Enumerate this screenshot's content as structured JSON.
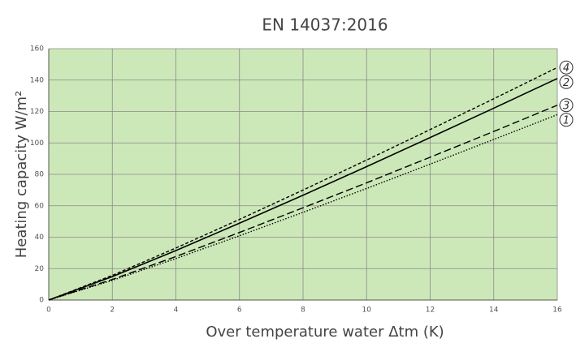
{
  "chart_data": {
    "type": "line",
    "title": "EN 14037:2016",
    "xlabel": "Over temperature water Δtm (K)",
    "ylabel": "Heating capacity W/m²",
    "x": [
      0,
      2,
      4,
      6,
      8,
      10,
      12,
      14,
      16
    ],
    "series": [
      {
        "name": "1",
        "color": "#000000",
        "dash": "dotted",
        "values": [
          0,
          12.5,
          26.4,
          40.9,
          55.8,
          71,
          86.5,
          102.2,
          118
        ]
      },
      {
        "name": "2",
        "color": "#000000",
        "dash": "solid",
        "values": [
          0,
          14.9,
          31.5,
          48.9,
          66.7,
          84.9,
          103.4,
          122.1,
          141
        ]
      },
      {
        "name": "3",
        "color": "#000000",
        "dash": "long",
        "values": [
          0,
          13.1,
          27.7,
          43,
          58.7,
          74.6,
          90.9,
          107.3,
          124
        ]
      },
      {
        "name": "4",
        "color": "#000000",
        "dash": "short",
        "values": [
          0,
          15.7,
          33.1,
          51.3,
          70,
          89.1,
          108.5,
          128.1,
          148
        ]
      }
    ],
    "xlim": [
      0,
      16
    ],
    "xticks": [
      0,
      2,
      4,
      6,
      8,
      10,
      12,
      14,
      16
    ],
    "ylim": [
      0,
      160
    ],
    "yticks": [
      0,
      20,
      40,
      60,
      80,
      100,
      120,
      140,
      160
    ],
    "grid": true,
    "background": "#cde8b8"
  }
}
